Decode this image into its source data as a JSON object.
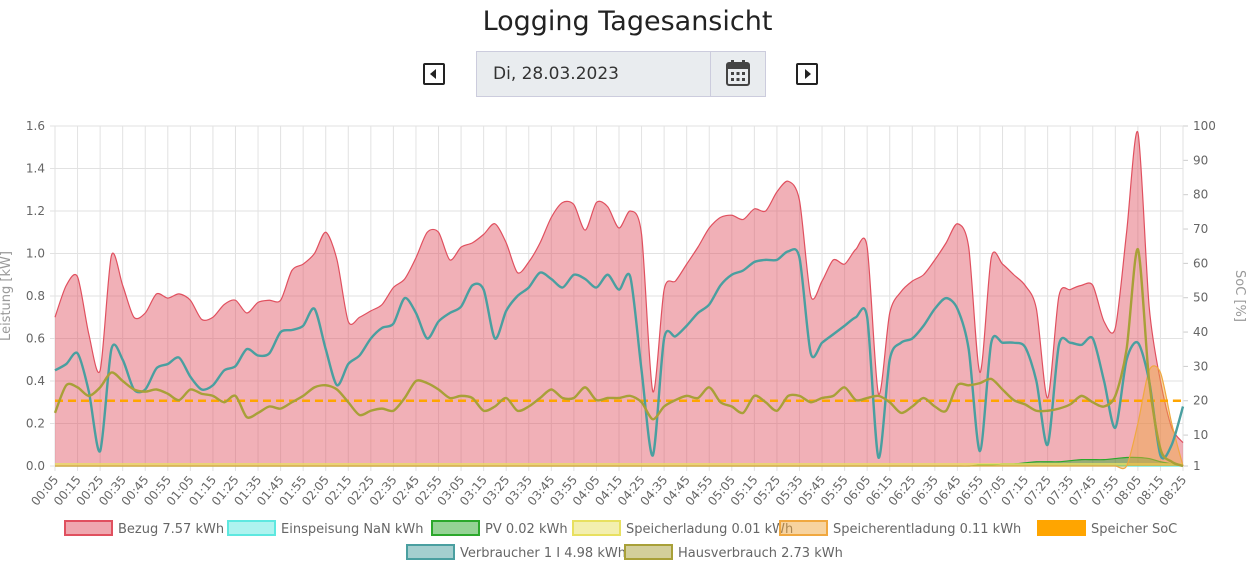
{
  "header": {
    "title": "Logging Tagesansicht",
    "date": "Di, 28.03.2023"
  },
  "chart_data": {
    "type": "line",
    "ylabel": "Leistung [kW]",
    "y2label": "SoC [%]",
    "ylim": [
      0,
      1.6
    ],
    "yticks": [
      {
        "value": 0,
        "label": "0.0"
      },
      0.2,
      0.4,
      0.6,
      0.8,
      {
        "value": 1,
        "label": "1.0"
      },
      1.2,
      1.4,
      1.6
    ],
    "y2lim": [
      1,
      100
    ],
    "y2ticks": [
      1,
      10,
      20,
      30,
      40,
      50,
      60,
      70,
      80,
      90,
      100
    ],
    "grid": true,
    "categories": [
      "00:05",
      null,
      "00:15",
      null,
      "00:25",
      null,
      "00:35",
      null,
      "00:45",
      null,
      "00:55",
      null,
      "01:05",
      null,
      "01:15",
      null,
      "01:25",
      null,
      "01:35",
      null,
      "01:45",
      null,
      "01:55",
      null,
      "02:05",
      null,
      "02:15",
      null,
      "02:25",
      null,
      "02:35",
      null,
      "02:45",
      null,
      "02:55",
      null,
      "03:05",
      null,
      "03:15",
      null,
      "03:25",
      null,
      "03:35",
      null,
      "03:45",
      null,
      "03:55",
      null,
      "04:05",
      null,
      "04:15",
      null,
      "04:25",
      null,
      "04:35",
      null,
      "04:45",
      null,
      "04:55",
      null,
      "05:05",
      null,
      "05:15",
      null,
      "05:25",
      null,
      "05:35",
      null,
      "05:45",
      null,
      "05:55",
      null,
      "06:05",
      null,
      "06:15",
      null,
      "06:25",
      null,
      "06:35",
      null,
      "06:45",
      null,
      "06:55",
      null,
      "07:05",
      null,
      "07:15",
      null,
      "07:25",
      null,
      "07:35",
      null,
      "07:45",
      null,
      "07:55",
      null,
      "08:05",
      null,
      "08:15",
      null,
      "08:25"
    ],
    "series": [
      {
        "name": "Bezug 7.57 kWh",
        "color": "#e0505f",
        "fill": true,
        "values": [
          0.7,
          0.85,
          0.89,
          0.62,
          0.45,
          0.99,
          0.85,
          0.7,
          0.72,
          0.81,
          0.79,
          0.81,
          0.78,
          0.69,
          0.7,
          0.76,
          0.78,
          0.72,
          0.77,
          0.78,
          0.78,
          0.92,
          0.95,
          1.0,
          1.1,
          0.97,
          0.68,
          0.7,
          0.73,
          0.76,
          0.84,
          0.88,
          0.98,
          1.1,
          1.1,
          0.97,
          1.03,
          1.05,
          1.09,
          1.14,
          1.05,
          0.91,
          0.96,
          1.05,
          1.17,
          1.24,
          1.23,
          1.11,
          1.24,
          1.22,
          1.12,
          1.2,
          1.09,
          0.35,
          0.83,
          0.87,
          0.95,
          1.03,
          1.12,
          1.17,
          1.18,
          1.16,
          1.21,
          1.2,
          1.29,
          1.34,
          1.25,
          0.8,
          0.87,
          0.97,
          0.95,
          1.02,
          1.03,
          0.34,
          0.72,
          0.82,
          0.87,
          0.9,
          0.97,
          1.05,
          1.14,
          1.03,
          0.44,
          0.98,
          0.95,
          0.9,
          0.85,
          0.74,
          0.32,
          0.8,
          0.83,
          0.85,
          0.85,
          0.68,
          0.65,
          1.1,
          1.57,
          0.75,
          0.4,
          0.18,
          0.11
        ]
      },
      {
        "name": "Einspeisung NaN kWh",
        "color": "#5ee8e0",
        "fill": true,
        "values": [
          0,
          0,
          0,
          0,
          0,
          0,
          0,
          0,
          0,
          0,
          0,
          0,
          0,
          0,
          0,
          0,
          0,
          0,
          0,
          0,
          0,
          0,
          0,
          0,
          0,
          0,
          0,
          0,
          0,
          0,
          0,
          0,
          0,
          0,
          0,
          0,
          0,
          0,
          0,
          0,
          0,
          0,
          0,
          0,
          0,
          0,
          0,
          0,
          0,
          0,
          0,
          0,
          0,
          0,
          0,
          0,
          0,
          0,
          0,
          0,
          0,
          0,
          0,
          0,
          0,
          0,
          0,
          0,
          0,
          0,
          0,
          0,
          0,
          0,
          0,
          0,
          0,
          0,
          0,
          0,
          0,
          0,
          0,
          0,
          0,
          0,
          0,
          0,
          0,
          0,
          0,
          0,
          0,
          0,
          0,
          0,
          0,
          0,
          0,
          0,
          0
        ]
      },
      {
        "name": "PV 0.02 kWh",
        "color": "#2ca82c",
        "fill": true,
        "values": [
          0,
          0,
          0,
          0,
          0,
          0,
          0,
          0,
          0,
          0,
          0,
          0,
          0,
          0,
          0,
          0,
          0,
          0,
          0,
          0,
          0,
          0,
          0,
          0,
          0,
          0,
          0,
          0,
          0,
          0,
          0,
          0,
          0,
          0,
          0,
          0,
          0,
          0,
          0,
          0,
          0,
          0,
          0,
          0,
          0,
          0,
          0,
          0,
          0,
          0,
          0,
          0,
          0,
          0,
          0,
          0,
          0,
          0,
          0,
          0,
          0,
          0,
          0,
          0,
          0,
          0,
          0,
          0,
          0,
          0,
          0,
          0,
          0,
          0,
          0,
          0,
          0,
          0,
          0,
          0,
          0,
          0,
          0.005,
          0.005,
          0.01,
          0.01,
          0.015,
          0.02,
          0.02,
          0.02,
          0.025,
          0.03,
          0.03,
          0.03,
          0.035,
          0.04,
          0.04,
          0.035,
          0.02,
          0.01,
          0
        ]
      },
      {
        "name": "Speicherladung 0.01 kWh",
        "color": "#e8e060",
        "fill": true,
        "values": [
          0.01,
          0.01,
          0.01,
          0.01,
          0.01,
          0.01,
          0.01,
          0.01,
          0.01,
          0.01,
          0.01,
          0.01,
          0.01,
          0.01,
          0.01,
          0.01,
          0.01,
          0.01,
          0.01,
          0.01,
          0.01,
          0.01,
          0.01,
          0.01,
          0.01,
          0.01,
          0.01,
          0.01,
          0.01,
          0.01,
          0.01,
          0.01,
          0.01,
          0.01,
          0.01,
          0.01,
          0.01,
          0.01,
          0.01,
          0.01,
          0.01,
          0.01,
          0.01,
          0.01,
          0.01,
          0.01,
          0.01,
          0.01,
          0.01,
          0.01,
          0.01,
          0.01,
          0.01,
          0.01,
          0.01,
          0.01,
          0.01,
          0.01,
          0.01,
          0.01,
          0.01,
          0.01,
          0.01,
          0.01,
          0.01,
          0.01,
          0.01,
          0.01,
          0.01,
          0.01,
          0.01,
          0.01,
          0.01,
          0.01,
          0.01,
          0.01,
          0.01,
          0.01,
          0.01,
          0.01,
          0.01,
          0.01,
          0.01,
          0.01,
          0.01,
          0.01,
          0.01,
          0.01,
          0.01,
          0.01,
          0.01,
          0.01,
          0.01,
          0.01,
          0.01,
          0.01,
          0.01,
          0.01,
          0.01,
          0.01,
          0.01
        ]
      },
      {
        "name": "Speicherentladung 0.11 kWh",
        "color": "#f0a840",
        "fill": true,
        "values": [
          0,
          0,
          0,
          0,
          0,
          0,
          0,
          0,
          0,
          0,
          0,
          0,
          0,
          0,
          0,
          0,
          0,
          0,
          0,
          0,
          0,
          0,
          0,
          0,
          0,
          0,
          0,
          0,
          0,
          0,
          0,
          0,
          0,
          0,
          0,
          0,
          0,
          0,
          0,
          0,
          0,
          0,
          0,
          0,
          0,
          0,
          0,
          0,
          0,
          0,
          0,
          0,
          0,
          0,
          0,
          0,
          0,
          0,
          0,
          0,
          0,
          0,
          0,
          0,
          0,
          0,
          0,
          0,
          0,
          0,
          0,
          0,
          0,
          0,
          0,
          0,
          0,
          0,
          0,
          0,
          0,
          0,
          0,
          0,
          0,
          0,
          0,
          0,
          0,
          0,
          0,
          0,
          0,
          0,
          0,
          0,
          0.2,
          0.45,
          0.44,
          0.2,
          0
        ]
      },
      {
        "name": "Speicher SoC",
        "color": "#ffa500",
        "dashed": true,
        "axis": "y2",
        "values": [
          20,
          20,
          20,
          20,
          20,
          20,
          20,
          20,
          20,
          20,
          20,
          20,
          20,
          20,
          20,
          20,
          20,
          20,
          20,
          20,
          20,
          20,
          20,
          20,
          20,
          20,
          20,
          20,
          20,
          20,
          20,
          20,
          20,
          20,
          20,
          20,
          20,
          20,
          20,
          20,
          20,
          20,
          20,
          20,
          20,
          20,
          20,
          20,
          20,
          20,
          20,
          20,
          20,
          20,
          20,
          20,
          20,
          20,
          20,
          20,
          20,
          20,
          20,
          20,
          20,
          20,
          20,
          20,
          20,
          20,
          20,
          20,
          20,
          20,
          20,
          20,
          20,
          20,
          20,
          20,
          20,
          20,
          20,
          20,
          20,
          20,
          20,
          20,
          20,
          20,
          20,
          20,
          20,
          20,
          20,
          20,
          20,
          20,
          20,
          20,
          20
        ]
      },
      {
        "name": "Verbraucher 1 I 4.98 kWh",
        "color": "#4a9fa0",
        "values": [
          0.45,
          0.48,
          0.53,
          0.35,
          0.07,
          0.55,
          0.5,
          0.36,
          0.36,
          0.46,
          0.48,
          0.51,
          0.42,
          0.36,
          0.38,
          0.45,
          0.47,
          0.55,
          0.52,
          0.53,
          0.63,
          0.64,
          0.66,
          0.74,
          0.55,
          0.38,
          0.48,
          0.52,
          0.6,
          0.65,
          0.67,
          0.79,
          0.72,
          0.6,
          0.68,
          0.72,
          0.75,
          0.85,
          0.83,
          0.6,
          0.73,
          0.8,
          0.84,
          0.91,
          0.88,
          0.84,
          0.9,
          0.88,
          0.84,
          0.9,
          0.83,
          0.89,
          0.45,
          0.05,
          0.6,
          0.61,
          0.66,
          0.72,
          0.76,
          0.85,
          0.9,
          0.92,
          0.96,
          0.97,
          0.97,
          1.01,
          0.98,
          0.53,
          0.58,
          0.62,
          0.66,
          0.7,
          0.7,
          0.04,
          0.5,
          0.58,
          0.6,
          0.66,
          0.74,
          0.79,
          0.74,
          0.55,
          0.07,
          0.58,
          0.58,
          0.58,
          0.56,
          0.4,
          0.1,
          0.57,
          0.58,
          0.57,
          0.6,
          0.4,
          0.18,
          0.5,
          0.58,
          0.4,
          0.05,
          0.1,
          0.28
        ]
      },
      {
        "name": "Hausverbrauch 2.73 kWh",
        "color": "#a8a038",
        "values": [
          0.25,
          0.38,
          0.37,
          0.33,
          0.37,
          0.44,
          0.4,
          0.36,
          0.35,
          0.36,
          0.34,
          0.31,
          0.36,
          0.34,
          0.33,
          0.3,
          0.33,
          0.23,
          0.25,
          0.28,
          0.27,
          0.3,
          0.33,
          0.37,
          0.38,
          0.36,
          0.3,
          0.24,
          0.26,
          0.27,
          0.26,
          0.32,
          0.4,
          0.39,
          0.36,
          0.32,
          0.33,
          0.32,
          0.26,
          0.28,
          0.32,
          0.26,
          0.28,
          0.32,
          0.36,
          0.32,
          0.32,
          0.37,
          0.31,
          0.32,
          0.32,
          0.33,
          0.3,
          0.22,
          0.28,
          0.31,
          0.33,
          0.32,
          0.37,
          0.3,
          0.28,
          0.25,
          0.33,
          0.3,
          0.26,
          0.33,
          0.33,
          0.3,
          0.32,
          0.33,
          0.37,
          0.31,
          0.32,
          0.33,
          0.3,
          0.25,
          0.28,
          0.32,
          0.28,
          0.26,
          0.38,
          0.38,
          0.39,
          0.41,
          0.36,
          0.31,
          0.29,
          0.26,
          0.26,
          0.27,
          0.29,
          0.33,
          0.3,
          0.28,
          0.33,
          0.55,
          1.02,
          0.4,
          0.08,
          0.02,
          0
        ]
      }
    ]
  }
}
